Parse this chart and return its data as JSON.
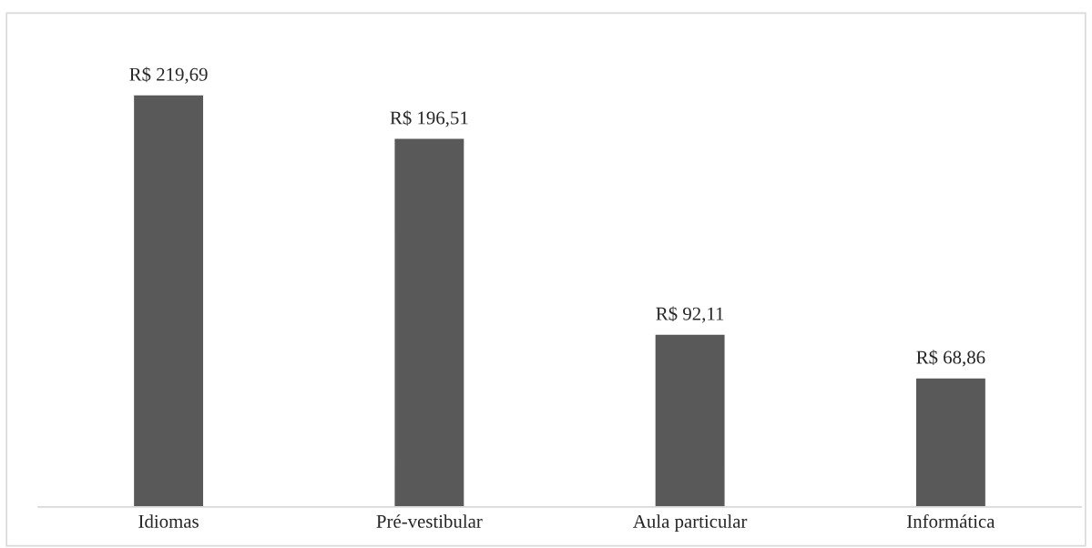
{
  "chart_data": {
    "type": "bar",
    "categories": [
      "Idiomas",
      "Pré-vestibular",
      "Aula particular",
      "Informática"
    ],
    "values": [
      219.69,
      196.51,
      92.11,
      68.86
    ],
    "value_labels": [
      "R$ 219,69",
      "R$ 196,51",
      "R$ 92,11",
      "R$ 68,86"
    ],
    "color": "#595959",
    "tick_labels": "x",
    "grid": false,
    "legend": false
  }
}
